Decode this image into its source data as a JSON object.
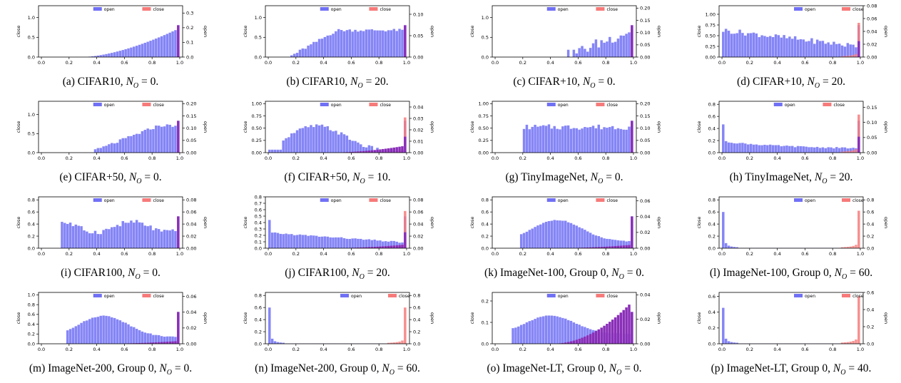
{
  "legend": {
    "open_label": "open",
    "close_label": "close",
    "open_color": "#7070f5",
    "close_color": "#f77a7a",
    "overlap_color": "#8a2fb8"
  },
  "axis_labels": {
    "left": "close",
    "right": "open"
  },
  "charts": [
    {
      "id": "a",
      "caption": {
        "prefix": "(a) CIFAR10, ",
        "value": "0."
      },
      "legend_pos": "top",
      "left_ticks": [
        "0.0",
        "0.5",
        "1.0"
      ],
      "left_max": 1.3,
      "right_ticks": [
        "0.0",
        "0.1",
        "0.2",
        "0.3"
      ],
      "right_max": 0.35,
      "open_shape": "rise_low",
      "open_peak_right": 0.27,
      "close_peak_left": 0.0,
      "tail_left": 0.0
    },
    {
      "id": "b",
      "caption": {
        "prefix": "(b) CIFAR10, ",
        "value": "20."
      },
      "legend_pos": "top",
      "left_ticks": [
        "0.0",
        "0.5",
        "1.0"
      ],
      "left_max": 1.3,
      "right_ticks": [
        "0.00",
        "0.05",
        "0.10"
      ],
      "right_max": 0.12,
      "open_shape": "ramp_mid",
      "open_peak_right": 0.1,
      "close_peak_left": 0.0,
      "tail_left": 0.0
    },
    {
      "id": "c",
      "caption": {
        "prefix": "(c) CIFAR+10, ",
        "value": "0."
      },
      "legend_pos": "top",
      "left_ticks": [
        "0.0",
        "0.5",
        "1.0"
      ],
      "left_max": 1.3,
      "right_ticks": [
        "0.00",
        "0.05",
        "0.10",
        "0.15",
        "0.20"
      ],
      "right_max": 0.21,
      "open_shape": "late_noisy",
      "open_peak_right": 0.15,
      "close_peak_left": 0.0,
      "tail_left": 0.0
    },
    {
      "id": "d",
      "caption": {
        "prefix": "(d) CIFAR+10, ",
        "value": "20."
      },
      "legend_pos": "top-right",
      "left_ticks": [
        "0.00",
        "0.25",
        "0.50",
        "0.75",
        "1.00"
      ],
      "left_max": 1.2,
      "right_ticks": [
        "0.00",
        "0.02",
        "0.04",
        "0.06",
        "0.08"
      ],
      "right_max": 0.08,
      "open_shape": "early_high",
      "open_peak_right": 0.04,
      "close_peak_left": 0.8,
      "tail_left": 0.0
    },
    {
      "id": "e",
      "caption": {
        "prefix": "(e) CIFAR+50, ",
        "value": "0."
      },
      "legend_pos": "top",
      "left_ticks": [
        "0.0",
        "0.5",
        "1.0"
      ],
      "left_max": 1.35,
      "right_ticks": [
        "0.00",
        "0.05",
        "0.10",
        "0.15",
        "0.20"
      ],
      "right_max": 0.21,
      "open_shape": "ramp_late",
      "open_peak_right": 0.15,
      "close_peak_left": 0.0,
      "tail_left": 0.0
    },
    {
      "id": "f",
      "caption": {
        "prefix": "(f) CIFAR+50, ",
        "value": "10."
      },
      "legend_pos": "top",
      "left_ticks": [
        "0.00",
        "0.25",
        "0.50",
        "0.75",
        "1.00"
      ],
      "left_max": 1.05,
      "right_ticks": [
        "0.00",
        "0.01",
        "0.02",
        "0.03",
        "0.04"
      ],
      "right_max": 0.045,
      "open_shape": "hump",
      "open_peak_right": 0.012,
      "close_peak_left": 0.72,
      "tail_left": 0.05
    },
    {
      "id": "g",
      "caption": {
        "prefix": "(g) TinyImageNet, ",
        "value": "0."
      },
      "legend_pos": "top",
      "left_ticks": [
        "0.00",
        "0.25",
        "0.50",
        "0.75",
        "1.00"
      ],
      "left_max": 1.05,
      "right_ticks": [
        "0.00",
        "0.05",
        "0.10",
        "0.15",
        "0.20"
      ],
      "right_max": 0.21,
      "open_shape": "flat_low",
      "open_peak_right": 0.16,
      "close_peak_left": 0.0,
      "tail_left": 0.0
    },
    {
      "id": "h",
      "caption": {
        "prefix": "(h) TinyImageNet, ",
        "value": "20."
      },
      "legend_pos": "top",
      "left_ticks": [
        "0.0",
        "0.2",
        "0.4",
        "0.6",
        "0.8"
      ],
      "left_max": 0.85,
      "right_ticks": [
        "0.00",
        "0.05",
        "0.10",
        "0.15"
      ],
      "right_max": 0.17,
      "open_shape": "spike_decay",
      "open_peak_right": 0.05,
      "close_peak_left": 0.63,
      "tail_left": 0.0
    },
    {
      "id": "i",
      "caption": {
        "prefix": "(i) CIFAR100, ",
        "value": "0."
      },
      "legend_pos": "top",
      "left_ticks": [
        "0.0",
        "0.2",
        "0.4",
        "0.6",
        "0.8"
      ],
      "left_max": 0.85,
      "right_ticks": [
        "0.00",
        "0.02",
        "0.04",
        "0.06",
        "0.08"
      ],
      "right_max": 0.085,
      "open_shape": "wavy",
      "open_peak_right": 0.067,
      "close_peak_left": 0.0,
      "tail_left": 0.0
    },
    {
      "id": "j",
      "caption": {
        "prefix": "(j) CIFAR100, ",
        "value": "20."
      },
      "legend_pos": "top",
      "left_ticks": [
        "0.0",
        "0.1",
        "0.2",
        "0.3",
        "0.4",
        "0.5",
        "0.6",
        "0.7",
        "0.8"
      ],
      "left_max": 0.8,
      "right_ticks": [
        "0.00",
        "0.02",
        "0.04",
        "0.06",
        "0.08"
      ],
      "right_max": 0.085,
      "open_shape": "spike_slope",
      "open_peak_right": 0.03,
      "close_peak_left": 0.58,
      "tail_left": 0.02
    },
    {
      "id": "k",
      "caption": {
        "prefix": "(k) ImageNet-100, Group 0, ",
        "value": "0."
      },
      "legend_pos": "top",
      "left_ticks": [
        "0.0",
        "0.2",
        "0.4",
        "0.6",
        "0.8"
      ],
      "left_max": 0.85,
      "right_ticks": [
        "0.00",
        "0.02",
        "0.04",
        "0.06"
      ],
      "right_max": 0.065,
      "open_shape": "hump_mid",
      "open_peak_right": 0.044,
      "close_peak_left": 0.0,
      "tail_left": 0.02
    },
    {
      "id": "l",
      "caption": {
        "prefix": "(l) ImageNet-100, Group 0, ",
        "value": "60."
      },
      "legend_pos": "top-right",
      "left_ticks": [
        "0.0",
        "0.2",
        "0.4",
        "0.6",
        "0.8"
      ],
      "left_max": 0.85,
      "right_ticks": [
        "0.0",
        "0.2",
        "0.4",
        "0.6",
        "0.8"
      ],
      "right_max": 0.85,
      "open_shape": "spike_only",
      "open_peak_right": 0.6,
      "close_peak_left": 0.62,
      "tail_left": 0.0
    },
    {
      "id": "m",
      "caption": {
        "prefix": "(m) ImageNet-200, Group 0, ",
        "value": "0."
      },
      "legend_pos": "top",
      "left_ticks": [
        "0.0",
        "0.2",
        "0.4",
        "0.6",
        "0.8",
        "1.0"
      ],
      "left_max": 1.05,
      "right_ticks": [
        "0.00",
        "0.02",
        "0.04",
        "0.06"
      ],
      "right_max": 0.065,
      "open_shape": "hump_mid",
      "open_peak_right": 0.04,
      "close_peak_left": 0.0,
      "tail_left": 0.02
    },
    {
      "id": "n",
      "caption": {
        "prefix": "(n) ImageNet-200, Group 0, ",
        "value": "60."
      },
      "legend_pos": "top-right",
      "left_ticks": [
        "0.0",
        "0.2",
        "0.4",
        "0.6",
        "0.8"
      ],
      "left_max": 0.85,
      "right_ticks": [
        "0.0",
        "0.2",
        "0.4",
        "0.6",
        "0.8"
      ],
      "right_max": 0.85,
      "open_shape": "spike_only",
      "open_peak_right": 0.6,
      "close_peak_left": 0.6,
      "tail_left": 0.0
    },
    {
      "id": "o",
      "caption": {
        "prefix": "(o) ImageNet-LT, Group 0, ",
        "value": "0."
      },
      "legend_pos": "top",
      "left_ticks": [
        "0.0",
        "0.1",
        "0.2"
      ],
      "left_max": 0.24,
      "right_ticks": [
        "0.00",
        "0.02",
        "0.04"
      ],
      "right_max": 0.042,
      "open_shape": "hump_lt",
      "open_peak_right": 0.03,
      "close_peak_left": 0.0,
      "tail_left": 0.07
    },
    {
      "id": "p",
      "caption": {
        "prefix": "(p) ImageNet-LT, Group 0, ",
        "value": "40."
      },
      "legend_pos": "top-right",
      "left_ticks": [
        "0.0",
        "0.2",
        "0.4",
        "0.6"
      ],
      "left_max": 0.65,
      "right_ticks": [
        "0.0",
        "0.2",
        "0.4",
        "0.6"
      ],
      "right_max": 0.6,
      "open_shape": "spike_only",
      "open_peak_right": 0.42,
      "close_peak_left": 0.6,
      "tail_left": 0.0
    }
  ],
  "chart_data": {
    "type": "bar",
    "xlabel": "",
    "ylabel": "close",
    "ylabel_right": "open",
    "xlim": [
      0,
      1
    ],
    "x_ticks": [
      "0.0",
      "0.2",
      "0.4",
      "0.6",
      "0.8",
      "1.0"
    ],
    "series": [
      {
        "name": "open"
      },
      {
        "name": "close"
      }
    ],
    "legend": "top",
    "grid": false
  }
}
